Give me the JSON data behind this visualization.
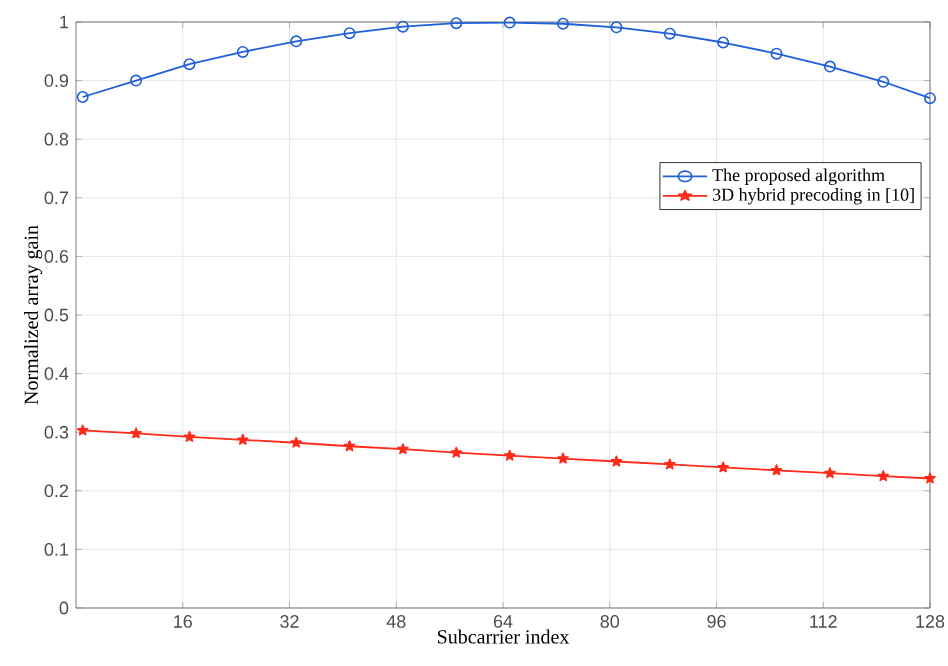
{
  "chart_data": {
    "type": "line",
    "xlabel": "Subcarrier index",
    "ylabel": "Normalized array gain",
    "xlim": [
      0,
      128
    ],
    "ylim": [
      0,
      1
    ],
    "xticks": [
      16,
      32,
      48,
      64,
      80,
      96,
      112,
      128
    ],
    "yticks": [
      0,
      0.1,
      0.2,
      0.3,
      0.4,
      0.5,
      0.6,
      0.7,
      0.8,
      0.9,
      1
    ],
    "grid": true,
    "legend": "right",
    "line_style": "solid",
    "x": [
      1,
      9,
      17,
      25,
      33,
      41,
      49,
      57,
      65,
      73,
      81,
      89,
      97,
      105,
      113,
      121,
      128
    ],
    "series": [
      {
        "name": "The proposed algorithm",
        "color": "#1f5fd9",
        "marker": "circle",
        "values": [
          0.872,
          0.9,
          0.928,
          0.949,
          0.967,
          0.981,
          0.992,
          0.998,
          0.999,
          0.997,
          0.991,
          0.98,
          0.965,
          0.946,
          0.924,
          0.898,
          0.87
        ]
      },
      {
        "name": "3D hybrid precoding in [10]",
        "color": "#ff2a1a",
        "marker": "star",
        "values": [
          0.303,
          0.298,
          0.292,
          0.287,
          0.282,
          0.276,
          0.271,
          0.265,
          0.26,
          0.255,
          0.25,
          0.245,
          0.24,
          0.235,
          0.23,
          0.225,
          0.221
        ]
      }
    ]
  }
}
